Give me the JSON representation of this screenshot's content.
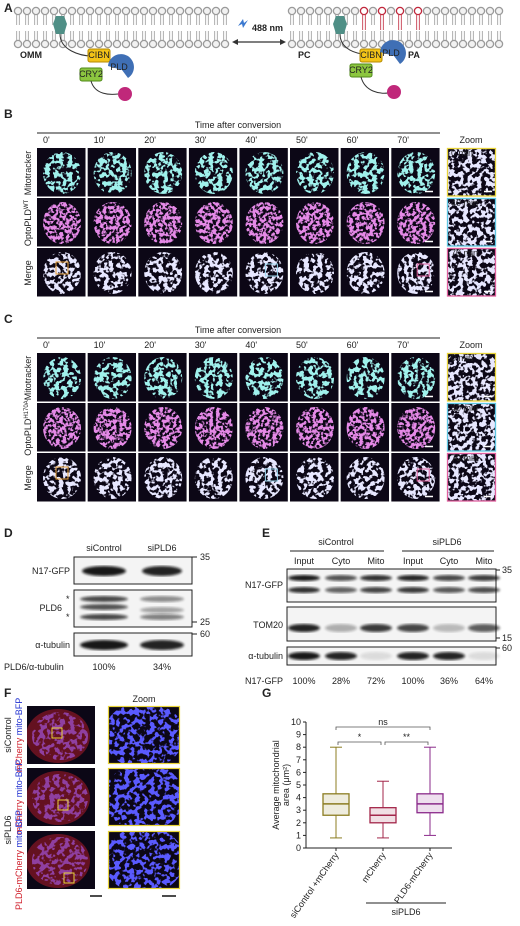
{
  "panel_a": {
    "label": "A",
    "omm": "OMM",
    "cibn_left": "CIBN",
    "cry2_left": "CRY2",
    "pld_left": "PLD",
    "wavelength": "488 nm",
    "pc": "PC",
    "cibn_right": "CIBN",
    "cry2_right": "CRY2",
    "pld_right": "PLD",
    "pa": "PA"
  },
  "panel_b": {
    "label": "B",
    "time_title": "Time after conversion",
    "times": [
      "0'",
      "10'",
      "20'",
      "30'",
      "40'",
      "50'",
      "60'",
      "70'"
    ],
    "zoom": "Zoom",
    "rows": [
      "Mitotracker",
      "OptoPLD",
      "Merge"
    ],
    "row_superscript": "WT",
    "zoom_times": [
      "0 min",
      "40 min",
      "70 min"
    ]
  },
  "panel_c": {
    "label": "C",
    "time_title": "Time after conversion",
    "times": [
      "0'",
      "10'",
      "20'",
      "30'",
      "40'",
      "50'",
      "60'",
      "70'"
    ],
    "zoom": "Zoom",
    "rows": [
      "Mitotracker",
      "OptoPLD",
      "Merge"
    ],
    "row_superscript": "H170A",
    "zoom_times": [
      "0 min",
      "40 min",
      "70 min"
    ]
  },
  "panel_d": {
    "label": "D",
    "lanes": [
      "siControl",
      "siPLD6"
    ],
    "blots": [
      "N17-GFP",
      "PLD6",
      "α-tubulin"
    ],
    "markers": [
      "35",
      "25",
      "60"
    ],
    "stars": [
      "*",
      "*"
    ],
    "ratio_label": "PLD6/α-tubulin",
    "ratios": [
      "100%",
      "34%"
    ]
  },
  "panel_e": {
    "label": "E",
    "groups": [
      "siControl",
      "siPLD6"
    ],
    "fractions": [
      "Input",
      "Cyto",
      "Mito",
      "Input",
      "Cyto",
      "Mito"
    ],
    "blots": [
      "N17-GFP",
      "TOM20",
      "α-tubulin"
    ],
    "markers": [
      "35",
      "15",
      "60"
    ],
    "ratio_label": "N17-GFP",
    "ratios": [
      "100%",
      "28%",
      "72%",
      "100%",
      "36%",
      "64%"
    ]
  },
  "panel_f": {
    "label": "F",
    "zoom": "Zoom",
    "groups": [
      "siControl",
      "siPLD6"
    ],
    "rows": [
      {
        "red": "mCherry",
        "blue": "mito-BFP"
      },
      {
        "red": "mCherry",
        "blue": "mito-BFP"
      },
      {
        "red": "PLD6-mCherry",
        "blue": "mito-BFP"
      }
    ]
  },
  "chart_data": {
    "type": "box",
    "label": "G",
    "ylabel": [
      "Average mitochondrial",
      "area (μm²)"
    ],
    "categories": [
      "siControl +mCherry",
      "mCherry",
      "PLD6-mCherry"
    ],
    "group_label": "siPLD6",
    "colors": [
      "#8c7d22",
      "#a3264a",
      "#8a2a8a"
    ],
    "boxes": [
      {
        "min": 0.8,
        "q1": 2.6,
        "median": 3.5,
        "q3": 4.3,
        "max": 8
      },
      {
        "min": 0.8,
        "q1": 2,
        "median": 2.6,
        "q3": 3.2,
        "max": 5.3
      },
      {
        "min": 1,
        "q1": 2.8,
        "median": 3.5,
        "q3": 4.3,
        "max": 8
      }
    ],
    "significance": [
      "ns",
      "*",
      "**"
    ],
    "ylim": [
      0,
      10
    ],
    "yticks": [
      0,
      1,
      2,
      3,
      4,
      5,
      6,
      7,
      8,
      9,
      10
    ]
  }
}
